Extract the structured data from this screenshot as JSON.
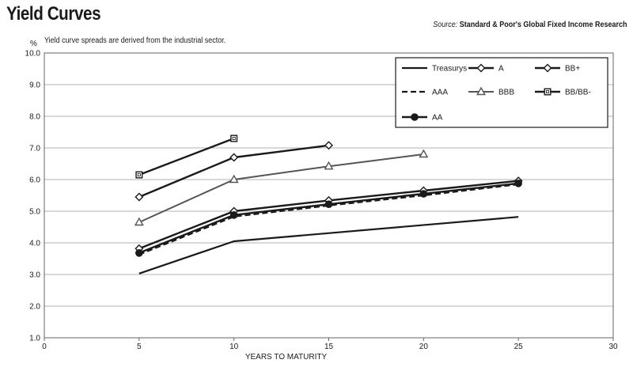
{
  "chart_data": {
    "type": "line",
    "title": "Yield Curves",
    "subtitle": "Yield curve spreads are derived from the industrial sector.",
    "source_prefix": "Source:",
    "source_name": "Standard & Poor's Global Fixed Income Research",
    "xlabel": "YEARS TO MATURITY",
    "ylabel": "%",
    "xlim": [
      0,
      30
    ],
    "ylim": [
      1.0,
      10.0
    ],
    "x_ticks": [
      0,
      5,
      10,
      15,
      20,
      25,
      30
    ],
    "y_ticks": [
      "1.0",
      "2.0",
      "3.0",
      "4.0",
      "5.0",
      "6.0",
      "7.0",
      "8.0",
      "9.0",
      "10.0"
    ],
    "grid": "horizontal",
    "legend_position": "top-right",
    "series": [
      {
        "name": "Treasurys",
        "marker": "none",
        "dash": "solid",
        "width": 2.2,
        "color": "#1a1a1a",
        "x": [
          5,
          10,
          25
        ],
        "y": [
          3.03,
          4.05,
          4.82
        ]
      },
      {
        "name": "A",
        "marker": "diamond",
        "dash": "solid",
        "width": 2.4,
        "color": "#1a1a1a",
        "x": [
          5,
          10,
          15,
          20,
          25
        ],
        "y": [
          3.82,
          5.0,
          5.34,
          5.65,
          5.96
        ]
      },
      {
        "name": "BB+",
        "marker": "diamond",
        "dash": "solid",
        "width": 2.4,
        "color": "#1a1a1a",
        "x": [
          5,
          10,
          15
        ],
        "y": [
          5.45,
          6.7,
          7.08
        ]
      },
      {
        "name": "AAA",
        "marker": "none",
        "dash": "dashed",
        "width": 2.2,
        "color": "#1a1a1a",
        "x": [
          5,
          10,
          15,
          20,
          25
        ],
        "y": [
          3.63,
          4.83,
          5.18,
          5.5,
          5.85
        ]
      },
      {
        "name": "BBB",
        "marker": "triangle",
        "dash": "solid",
        "width": 2.0,
        "color": "#555555",
        "x": [
          5,
          10,
          15,
          20
        ],
        "y": [
          4.65,
          6.0,
          6.42,
          6.8
        ]
      },
      {
        "name": "BB/BB-",
        "marker": "square",
        "dash": "solid",
        "width": 2.4,
        "color": "#1a1a1a",
        "x": [
          5,
          10
        ],
        "y": [
          6.15,
          7.3
        ]
      },
      {
        "name": "AA",
        "marker": "circle",
        "dash": "solid",
        "width": 2.4,
        "color": "#1a1a1a",
        "x": [
          5,
          10,
          15,
          20,
          25
        ],
        "y": [
          3.68,
          4.88,
          5.22,
          5.55,
          5.88
        ]
      }
    ]
  }
}
